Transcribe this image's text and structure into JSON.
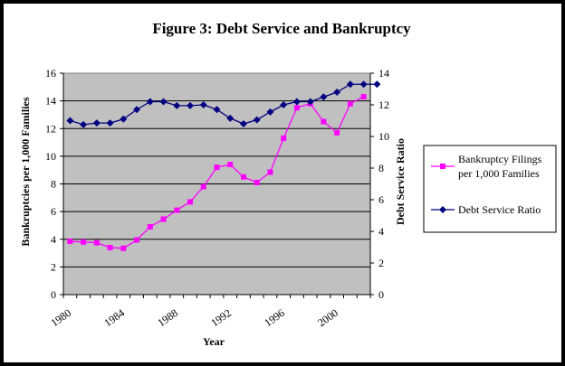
{
  "chart_data": {
    "type": "line",
    "title": "Figure 3: Debt Service and Bankruptcy",
    "xlabel": "Year",
    "ylabel": "Bankruptcies per 1,000 Families",
    "y2label": "Debt Service Ratio",
    "xlim": [
      1980,
      2002
    ],
    "ylim": [
      0,
      16
    ],
    "y2lim": [
      0,
      14
    ],
    "yticks": [
      "0",
      "2",
      "4",
      "6",
      "8",
      "10",
      "12",
      "14",
      "16"
    ],
    "y2ticks": [
      "0",
      "2",
      "4",
      "6",
      "8",
      "10",
      "12",
      "14"
    ],
    "xticks": [
      "1980",
      "1984",
      "1988",
      "1992",
      "1996",
      "2000"
    ],
    "grid": true,
    "plot_background": "#c0c0c0",
    "legend_position": "right",
    "series": [
      {
        "name": "Bankruptcy Filings per 1,000 Families",
        "axis": "left",
        "color": "#ff00ff",
        "marker": "square",
        "x": [
          1980,
          1981,
          1982,
          1983,
          1984,
          1985,
          1986,
          1987,
          1988,
          1989,
          1990,
          1991,
          1992,
          1993,
          1994,
          1995,
          1996,
          1997,
          1998,
          1999,
          2000,
          2001,
          2002
        ],
        "values": [
          3.85,
          3.8,
          3.75,
          3.4,
          3.35,
          3.95,
          4.9,
          5.45,
          6.1,
          6.7,
          7.8,
          9.2,
          9.4,
          8.5,
          8.1,
          8.85,
          11.3,
          13.5,
          13.8,
          12.5,
          11.7,
          13.8,
          14.3
        ]
      },
      {
        "name": "Debt Service Ratio",
        "axis": "right",
        "color": "#000080",
        "marker": "diamond",
        "x": [
          1980,
          1981,
          1982,
          1983,
          1984,
          1985,
          1986,
          1987,
          1988,
          1989,
          1990,
          1991,
          1992,
          1993,
          1994,
          1995,
          1996,
          1997,
          1998,
          1999,
          2000,
          2001,
          2002,
          2003
        ],
        "values": [
          11.0,
          10.75,
          10.85,
          10.85,
          11.1,
          11.7,
          12.2,
          12.2,
          11.95,
          11.95,
          12.0,
          11.7,
          11.15,
          10.8,
          11.05,
          11.55,
          12.0,
          12.2,
          12.2,
          12.5,
          12.8,
          13.3,
          13.3,
          13.3
        ]
      }
    ]
  }
}
